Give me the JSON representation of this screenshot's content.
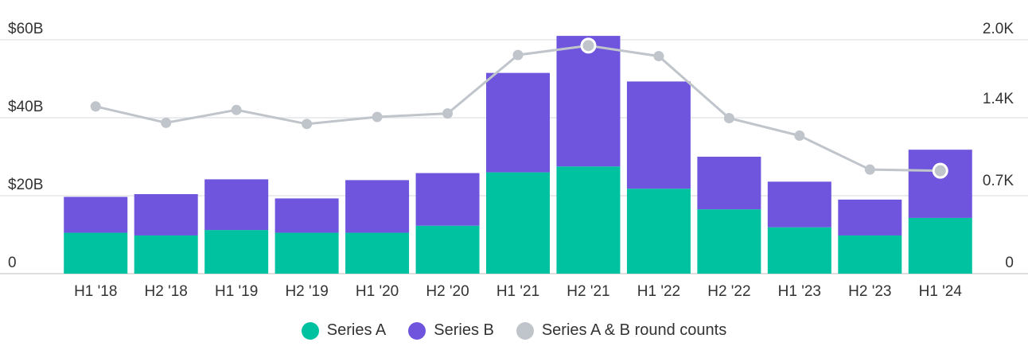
{
  "chart_data": {
    "type": "bar",
    "stacked": true,
    "categories": [
      "H1 '18",
      "H2 '18",
      "H1 '19",
      "H2 '19",
      "H1 '20",
      "H2 '20",
      "H1 '21",
      "H2 '21",
      "H1 '22",
      "H2 '22",
      "H1 '23",
      "H2 '23",
      "H1 '24"
    ],
    "series": [
      {
        "name": "Series A",
        "axis": "left",
        "color": "#00C2A0",
        "values": [
          10.5,
          9.8,
          11.2,
          10.5,
          10.5,
          12.3,
          26,
          27.5,
          21.8,
          16.5,
          11.9,
          9.8,
          14.3
        ]
      },
      {
        "name": "Series B",
        "axis": "left",
        "color": "#6F55DD",
        "values": [
          9.2,
          10.6,
          13,
          8.8,
          13.5,
          13.5,
          25.5,
          33.5,
          27.5,
          13.5,
          11.7,
          9.2,
          17.5
        ]
      },
      {
        "name": "Series A & B round counts",
        "axis": "right",
        "type": "line",
        "color": "#BFC5CB",
        "values": [
          1430,
          1290,
          1400,
          1280,
          1340,
          1370,
          1870,
          1950,
          1860,
          1330,
          1180,
          890,
          880
        ]
      }
    ],
    "left_axis": {
      "ticks": [
        "0",
        "$20B",
        "$40B",
        "$60B"
      ],
      "tick_values": [
        0,
        20,
        40,
        60
      ],
      "ylim": [
        0,
        60
      ]
    },
    "right_axis": {
      "ticks": [
        "0",
        "0.7K",
        "1.4K",
        "2.0K"
      ],
      "tick_values": [
        0,
        700,
        1400,
        2000
      ],
      "ylim": [
        0,
        2000
      ]
    },
    "highlight_points": [
      7,
      12
    ],
    "grid": true,
    "legend_position": "bottom"
  }
}
